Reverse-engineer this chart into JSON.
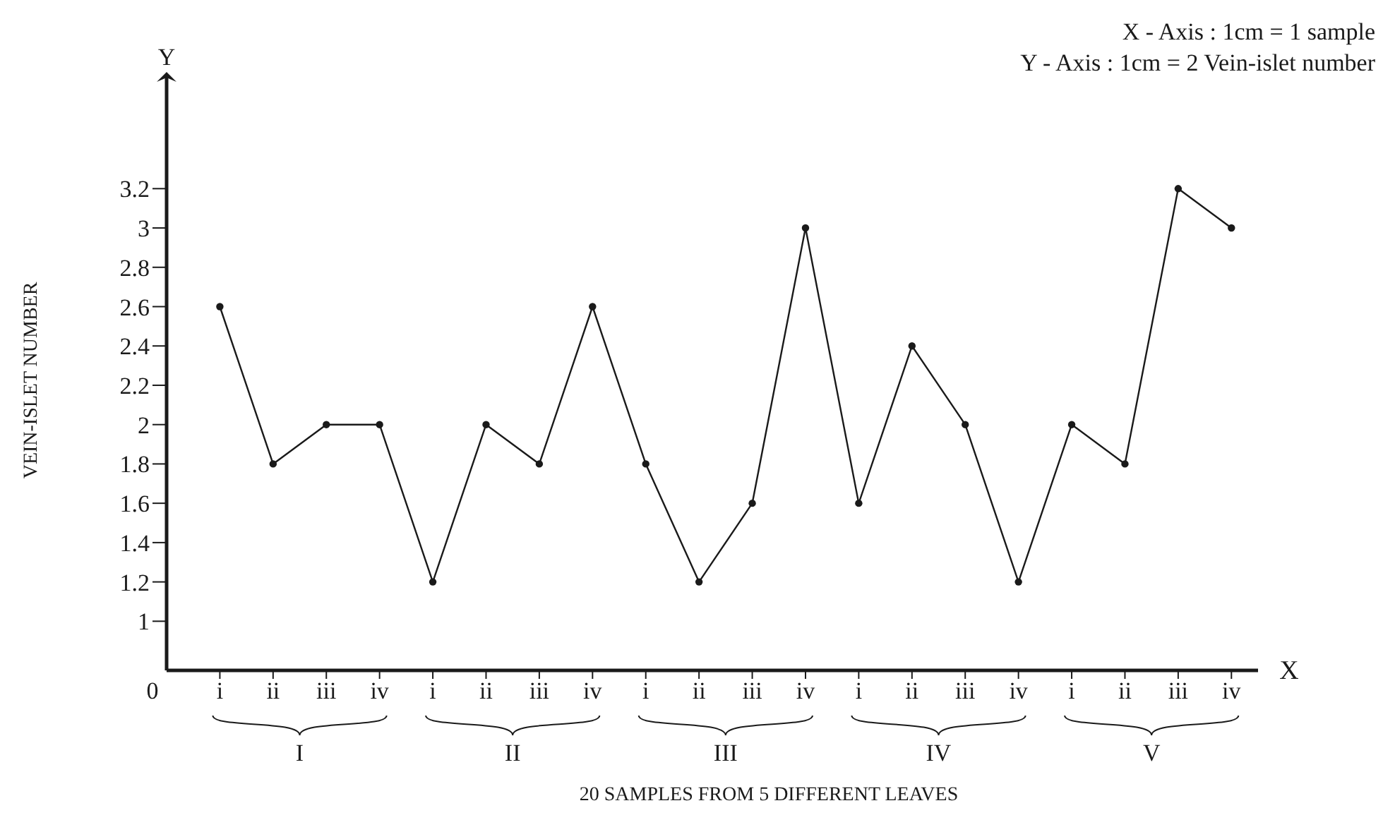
{
  "chart_data": {
    "type": "line",
    "xlabel": "20 SAMPLES FROM 5 DIFFERENT LEAVES",
    "ylabel": "VEIN-ISLET NUMBER",
    "categories": [
      "i",
      "ii",
      "iii",
      "iv",
      "i",
      "ii",
      "iii",
      "iv",
      "i",
      "ii",
      "iii",
      "iv",
      "i",
      "ii",
      "iii",
      "iv",
      "i",
      "ii",
      "iii",
      "iv"
    ],
    "series": [
      {
        "color": "#1a1a1a",
        "values": [
          2.6,
          1.8,
          2,
          2,
          1.2,
          2,
          1.8,
          2.6,
          1.8,
          1.2,
          1.6,
          3,
          1.6,
          2.4,
          2,
          1.2,
          2,
          1.8,
          3.2,
          3
        ]
      }
    ],
    "ylim": [
      0.75,
      3.7
    ],
    "yticks": [
      1,
      1.2,
      1.4,
      1.6,
      1.8,
      2,
      2.2,
      2.4,
      2.6,
      2.8,
      3,
      3.2
    ],
    "marker": "circle",
    "line_style": "solid",
    "annotations": [
      "X - Axis : 1cm = 1 sample",
      "Y - Axis : 1cm = 2 Vein-islet number",
      "0",
      "X",
      "Y",
      "I",
      "II",
      "III",
      "IV",
      "V"
    ]
  }
}
